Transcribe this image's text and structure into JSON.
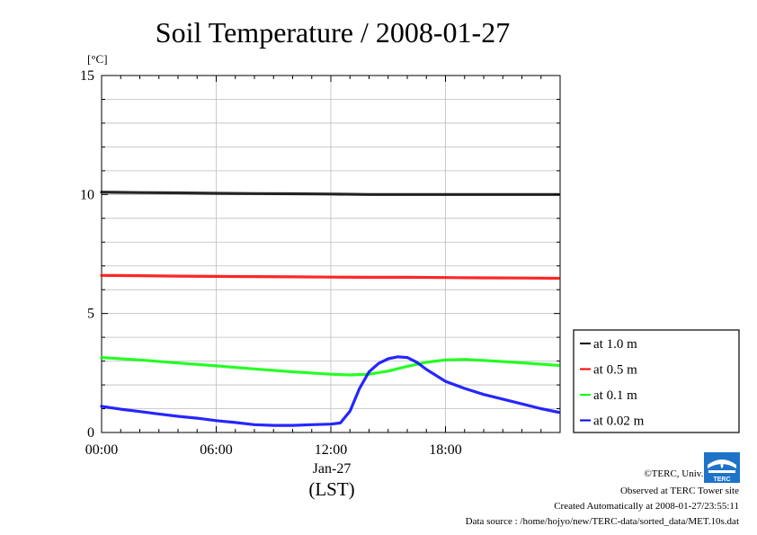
{
  "chart_data": {
    "type": "line",
    "title": "Soil Temperature / 2008-01-27",
    "yunit": "[°C]",
    "ylim": [
      0,
      15
    ],
    "yticks": [
      0,
      5,
      10,
      15
    ],
    "xlim": [
      "2008-01-27T00:00",
      "2008-01-27T23:55"
    ],
    "xticks": [
      "00:00",
      "06:00",
      "12:00",
      "18:00"
    ],
    "xdate": "Jan-27",
    "xlabel": "(LST)",
    "grid": true,
    "legend_position": "right",
    "series": [
      {
        "name": "at 1.0 m",
        "color": "#000000",
        "x": [
          "00:00",
          "02:00",
          "04:00",
          "06:00",
          "08:00",
          "10:00",
          "12:00",
          "14:00",
          "16:00",
          "18:00",
          "20:00",
          "22:00",
          "23:55"
        ],
        "values": [
          10.1,
          10.08,
          10.07,
          10.05,
          10.04,
          10.03,
          10.02,
          10.0,
          10.0,
          10.0,
          10.0,
          10.0,
          10.0
        ]
      },
      {
        "name": "at 0.5 m",
        "color": "#ff0000",
        "x": [
          "00:00",
          "02:00",
          "04:00",
          "06:00",
          "08:00",
          "10:00",
          "12:00",
          "14:00",
          "16:00",
          "18:00",
          "20:00",
          "22:00",
          "23:55"
        ],
        "values": [
          6.6,
          6.59,
          6.57,
          6.56,
          6.55,
          6.54,
          6.53,
          6.52,
          6.52,
          6.51,
          6.5,
          6.49,
          6.48
        ]
      },
      {
        "name": "at 0.1 m",
        "color": "#00ff00",
        "x": [
          "00:00",
          "02:00",
          "04:00",
          "06:00",
          "08:00",
          "10:00",
          "12:00",
          "13:00",
          "14:00",
          "15:00",
          "16:00",
          "17:00",
          "18:00",
          "19:00",
          "20:00",
          "22:00",
          "23:55"
        ],
        "values": [
          3.15,
          3.05,
          2.92,
          2.8,
          2.67,
          2.55,
          2.45,
          2.42,
          2.45,
          2.58,
          2.78,
          2.95,
          3.05,
          3.07,
          3.03,
          2.93,
          2.82
        ]
      },
      {
        "name": "at 0.02 m",
        "color": "#0000ff",
        "x": [
          "00:00",
          "01:00",
          "02:00",
          "03:00",
          "04:00",
          "05:00",
          "06:00",
          "07:00",
          "08:00",
          "09:00",
          "10:00",
          "11:00",
          "12:00",
          "12:30",
          "13:00",
          "13:30",
          "14:00",
          "14:30",
          "15:00",
          "15:30",
          "16:00",
          "16:30",
          "17:00",
          "18:00",
          "19:00",
          "20:00",
          "21:00",
          "22:00",
          "23:00",
          "23:55"
        ],
        "values": [
          1.1,
          0.98,
          0.88,
          0.78,
          0.68,
          0.6,
          0.5,
          0.42,
          0.33,
          0.3,
          0.3,
          0.33,
          0.35,
          0.4,
          0.9,
          1.85,
          2.55,
          2.9,
          3.1,
          3.18,
          3.15,
          2.95,
          2.65,
          2.15,
          1.85,
          1.6,
          1.4,
          1.2,
          1.0,
          0.85
        ]
      }
    ]
  },
  "footer": {
    "credit": "©TERC, Univ. Tsukuba",
    "site": "Observed at TERC Tower site",
    "created": "Created Automatically at 2008-01-27/23:55:11",
    "source": "Data source : /home/hojyo/new/TERC-data/sorted_data/MET.10s.dat",
    "logo_text": "TERC"
  }
}
